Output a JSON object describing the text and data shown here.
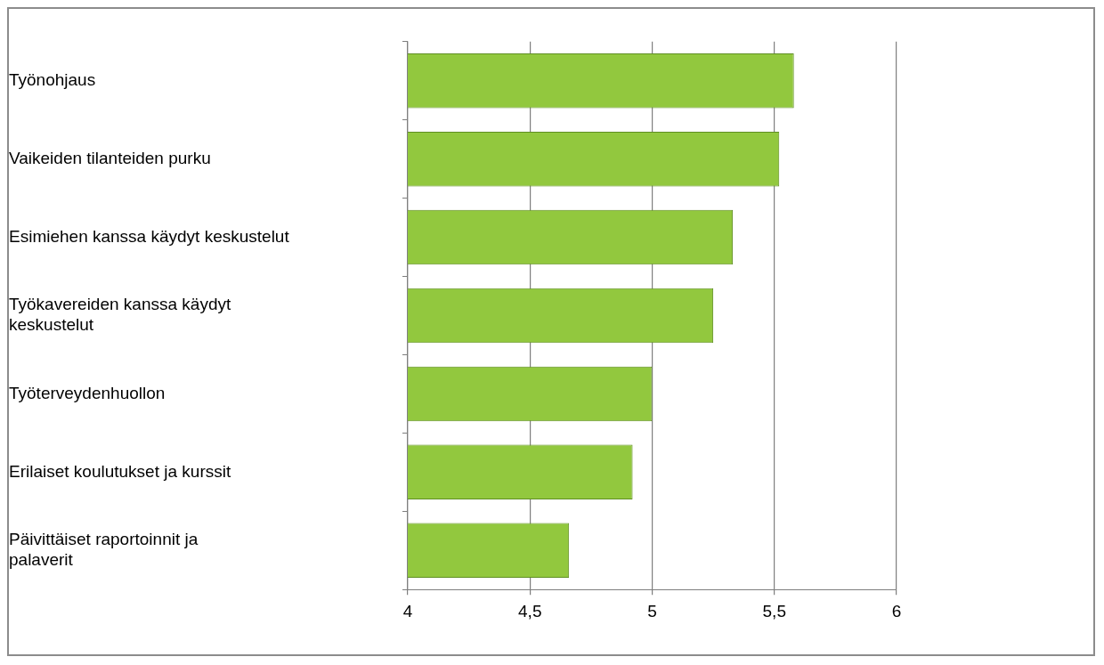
{
  "chart_data": {
    "type": "bar",
    "orientation": "horizontal",
    "categories": [
      "Työnohjaus",
      "Vaikeiden tilanteiden purku",
      "Esimiehen kanssa käydyt keskustelut",
      "Työkavereiden kanssa käydyt keskustelut",
      "Työterveydenhuollon",
      "Erilaiset koulutukset ja kurssit",
      "Päivittäiset raportoinnit ja palaverit"
    ],
    "values": [
      5.58,
      5.52,
      5.33,
      5.25,
      5.0,
      4.92,
      4.66
    ],
    "color": "#92c83e",
    "xlim": [
      4,
      6
    ],
    "xticks": [
      {
        "value": 4,
        "label": "4"
      },
      {
        "value": 4.5,
        "label": "4,5"
      },
      {
        "value": 5,
        "label": "5"
      },
      {
        "value": 5.5,
        "label": "5,5"
      },
      {
        "value": 6,
        "label": "6"
      }
    ],
    "grid": "x",
    "legend": false
  }
}
